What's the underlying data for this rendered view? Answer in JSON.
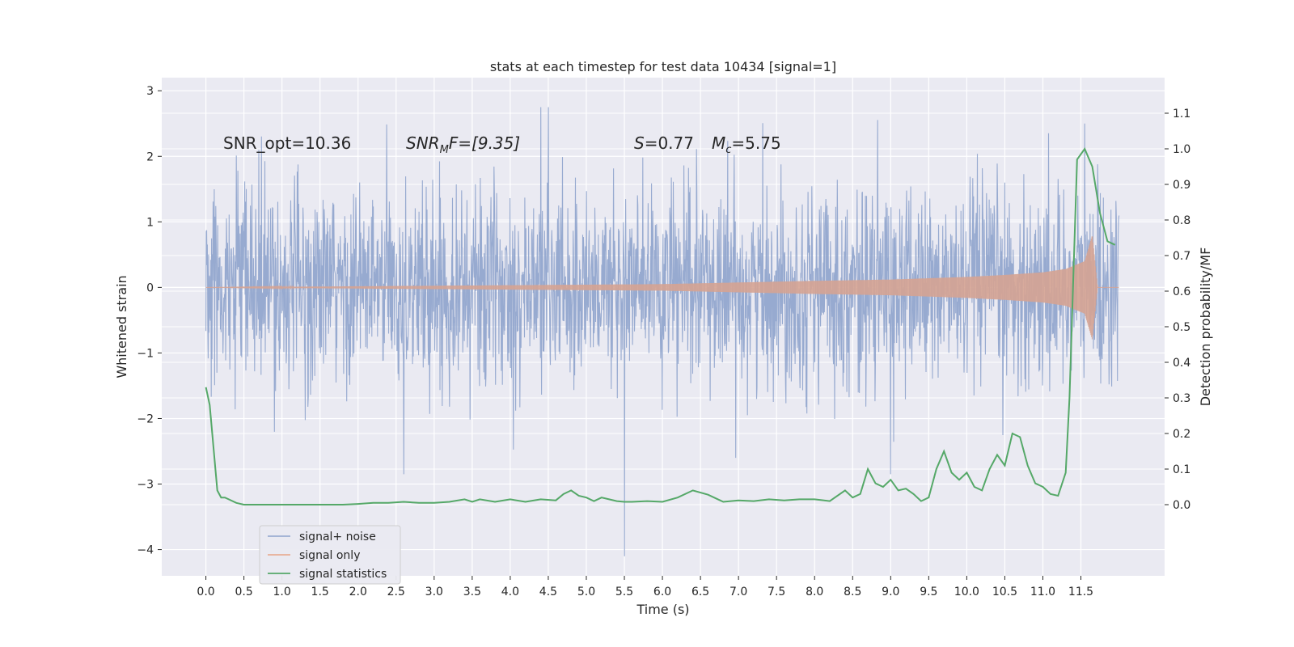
{
  "chart_data": {
    "type": "line",
    "title": "stats at each timestep for test data 10434 [signal=1]",
    "xlabel": "Time (s)",
    "ylabel": "Whitened strain",
    "y2label": "Detection probability/MF",
    "xlim": [
      -0.58,
      12.6
    ],
    "ylim": [
      -4.4,
      3.2
    ],
    "y2lim": [
      -0.2,
      1.2
    ],
    "xticks": [
      0.0,
      0.5,
      1.0,
      1.5,
      2.0,
      2.5,
      3.0,
      3.5,
      4.0,
      4.5,
      5.0,
      5.5,
      6.0,
      6.5,
      7.0,
      7.5,
      8.0,
      8.5,
      9.0,
      9.5,
      10.0,
      10.5,
      11.0,
      11.5
    ],
    "xtick_labels": [
      "0.0",
      "0.5",
      "1.0",
      "1.5",
      "2.0",
      "2.5",
      "3.0",
      "3.5",
      "4.0",
      "4.5",
      "5.0",
      "5.5",
      "6.0",
      "6.5",
      "7.0",
      "7.5",
      "8.0",
      "8.5",
      "9.0",
      "9.5",
      "10.0",
      "10.5",
      "11.0",
      "11.5"
    ],
    "yticks": [
      3,
      2,
      1,
      0,
      -1,
      -2,
      -3,
      -4
    ],
    "ytick_labels": [
      "3",
      "2",
      "1",
      "0",
      "−1",
      "−2",
      "−3",
      "−4"
    ],
    "y2ticks": [
      1.1,
      1.0,
      0.9,
      0.8,
      0.7,
      0.6,
      0.5,
      0.4,
      0.3,
      0.2,
      0.1,
      0.0
    ],
    "y2tick_labels": [
      "1.1",
      "1.0",
      "0.9",
      "0.8",
      "0.7",
      "0.6",
      "0.5",
      "0.4",
      "0.3",
      "0.2",
      "0.1",
      "0.0"
    ],
    "grid": true,
    "legend_position": "lower-left",
    "annotations": {
      "snr_opt": "SNR_opt=10.36",
      "snr_mf_base": "SNR",
      "snr_mf_sub": "M",
      "snr_mf_rest": "F=[9.35]",
      "s_base": "S",
      "s_rest": "=0.77",
      "mc_base": "M",
      "mc_sub": "c",
      "mc_rest": "=5.75"
    },
    "series": [
      {
        "name": "signal+ noise",
        "color": "#8ea3cc",
        "t_start": 0.0,
        "t_end": 12.0,
        "description_values": "noise band, typical amplitude about ±1.3 with peaks near 2.8 and -4.1",
        "peaks": [
          {
            "x": 4.4,
            "y": 2.75
          },
          {
            "x": 4.5,
            "y": 2.75
          },
          {
            "x": 5.5,
            "y": -4.1
          },
          {
            "x": 2.6,
            "y": -2.85
          },
          {
            "x": 11.55,
            "y": 2.5
          },
          {
            "x": 9.0,
            "y": -2.85
          }
        ]
      },
      {
        "name": "signal only",
        "color": "#dd8452",
        "t_start": 0.0,
        "t_end": 12.0,
        "envelope": [
          [
            0.0,
            0.0
          ],
          [
            6.0,
            0.05
          ],
          [
            8.0,
            0.1
          ],
          [
            9.0,
            0.12
          ],
          [
            10.0,
            0.16
          ],
          [
            10.5,
            0.19
          ],
          [
            11.0,
            0.23
          ],
          [
            11.3,
            0.28
          ],
          [
            11.55,
            0.4
          ],
          [
            11.65,
            0.8
          ],
          [
            11.72,
            0.0
          ],
          [
            12.0,
            0.0
          ]
        ]
      },
      {
        "name": "signal statistics",
        "color": "#55a868",
        "axis": "right",
        "x": [
          0.0,
          0.05,
          0.15,
          0.2,
          0.25,
          0.3,
          0.4,
          0.5,
          0.6,
          0.8,
          1.0,
          1.2,
          1.5,
          1.8,
          2.0,
          2.2,
          2.4,
          2.6,
          2.8,
          3.0,
          3.2,
          3.4,
          3.5,
          3.6,
          3.8,
          4.0,
          4.2,
          4.4,
          4.6,
          4.7,
          4.8,
          4.9,
          5.0,
          5.1,
          5.2,
          5.3,
          5.4,
          5.5,
          5.6,
          5.8,
          6.0,
          6.2,
          6.4,
          6.6,
          6.8,
          7.0,
          7.2,
          7.4,
          7.6,
          7.8,
          8.0,
          8.2,
          8.4,
          8.5,
          8.6,
          8.7,
          8.8,
          8.9,
          9.0,
          9.1,
          9.2,
          9.3,
          9.4,
          9.5,
          9.6,
          9.7,
          9.8,
          9.9,
          10.0,
          10.1,
          10.2,
          10.3,
          10.4,
          10.5,
          10.6,
          10.7,
          10.8,
          10.9,
          11.0,
          11.1,
          11.2,
          11.3,
          11.35,
          11.45,
          11.55,
          11.65,
          11.75,
          11.85,
          11.95
        ],
        "values": [
          0.33,
          0.28,
          0.04,
          0.02,
          0.02,
          0.015,
          0.005,
          0.0,
          0.0,
          0.0,
          0.0,
          0.0,
          0.0,
          0.0,
          0.002,
          0.005,
          0.005,
          0.008,
          0.005,
          0.005,
          0.008,
          0.015,
          0.008,
          0.015,
          0.008,
          0.015,
          0.008,
          0.015,
          0.012,
          0.03,
          0.04,
          0.025,
          0.02,
          0.01,
          0.02,
          0.015,
          0.01,
          0.008,
          0.008,
          0.01,
          0.008,
          0.02,
          0.04,
          0.028,
          0.008,
          0.012,
          0.01,
          0.015,
          0.012,
          0.015,
          0.015,
          0.01,
          0.04,
          0.02,
          0.03,
          0.1,
          0.06,
          0.05,
          0.07,
          0.04,
          0.045,
          0.03,
          0.01,
          0.02,
          0.1,
          0.15,
          0.09,
          0.07,
          0.09,
          0.05,
          0.04,
          0.1,
          0.14,
          0.11,
          0.2,
          0.19,
          0.11,
          0.06,
          0.05,
          0.03,
          0.025,
          0.09,
          0.3,
          0.97,
          1.0,
          0.95,
          0.82,
          0.74,
          0.73
        ]
      }
    ]
  }
}
